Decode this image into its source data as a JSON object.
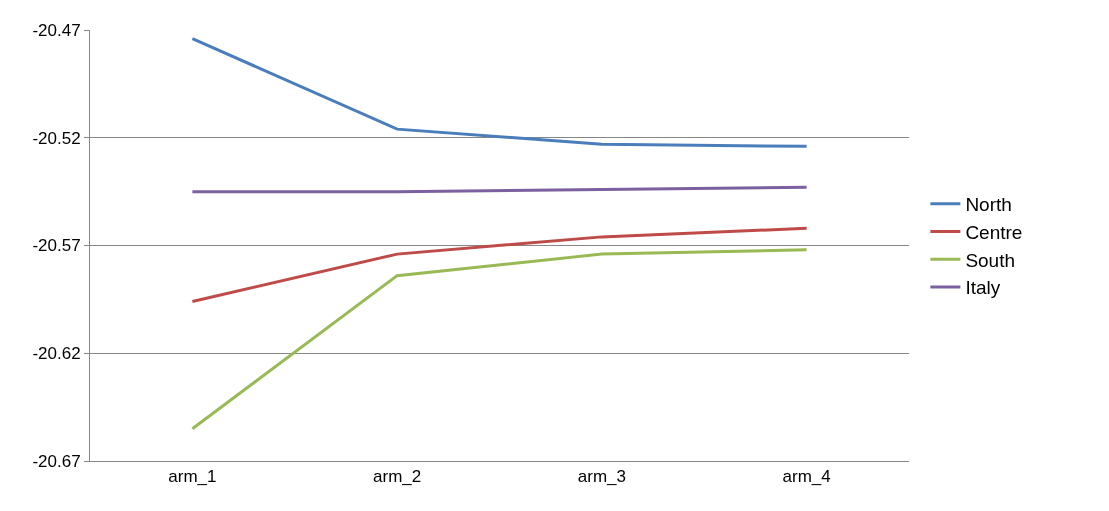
{
  "chart_data": {
    "type": "line",
    "categories": [
      "arm_1",
      "arm_2",
      "arm_3",
      "arm_4"
    ],
    "series": [
      {
        "name": "North",
        "color": "#4a7ebb",
        "values": [
          -20.474,
          -20.516,
          -20.523,
          -20.524
        ]
      },
      {
        "name": "Centre",
        "color": "#be4b48",
        "values": [
          -20.596,
          -20.574,
          -20.566,
          -20.562
        ]
      },
      {
        "name": "South",
        "color": "#98b954",
        "values": [
          -20.655,
          -20.584,
          -20.574,
          -20.572
        ]
      },
      {
        "name": "Italy",
        "color": "#7d60a0",
        "values": [
          -20.545,
          -20.545,
          -20.544,
          -20.543
        ]
      }
    ],
    "ylim": [
      -20.67,
      -20.47
    ],
    "yticks": [
      -20.67,
      -20.62,
      -20.57,
      -20.52,
      -20.47
    ],
    "grid": "y",
    "legend": "right",
    "marker": "none",
    "line_style": "solid"
  }
}
